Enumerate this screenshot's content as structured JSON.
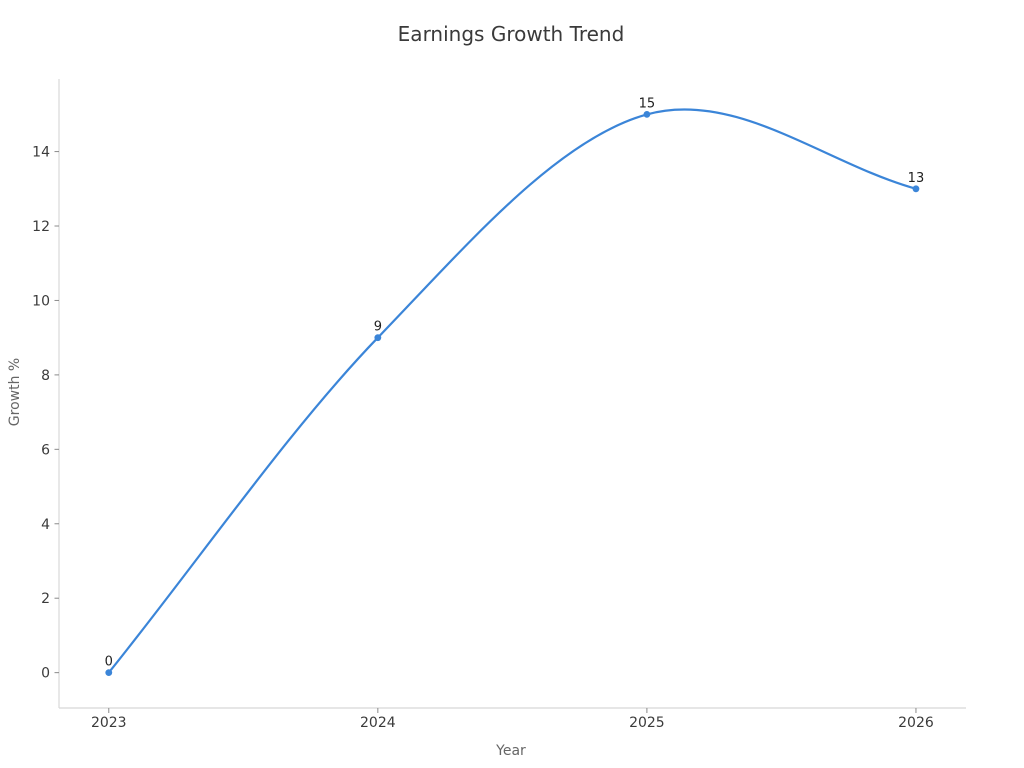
{
  "chart_data": {
    "type": "line",
    "title": "Earnings Growth Trend",
    "xlabel": "Year",
    "ylabel": "Growth %",
    "x": [
      2023,
      2024,
      2025,
      2026
    ],
    "values": [
      0,
      9,
      15,
      13
    ],
    "point_labels": [
      "0",
      "9",
      "15",
      "13"
    ],
    "x_ticks": [
      2023,
      2024,
      2025,
      2026
    ],
    "y_ticks": [
      0,
      2,
      4,
      6,
      8,
      10,
      12,
      14
    ],
    "xlim": [
      2022.815,
      2026.186
    ],
    "ylim": [
      -0.95,
      15.95
    ],
    "smooth": true,
    "grid": false,
    "legend": false,
    "line_color": "#3b85d8",
    "marker_color": "#3b85d8",
    "spine_color": "#d8d8d8",
    "tick_color": "#8a8a8a",
    "title_color": "#3a3a3a",
    "tick_label_color": "#3b3b3b",
    "axis_label_color": "#666666",
    "point_label_color": "#1f1f1f",
    "background_color": "#ffffff"
  }
}
